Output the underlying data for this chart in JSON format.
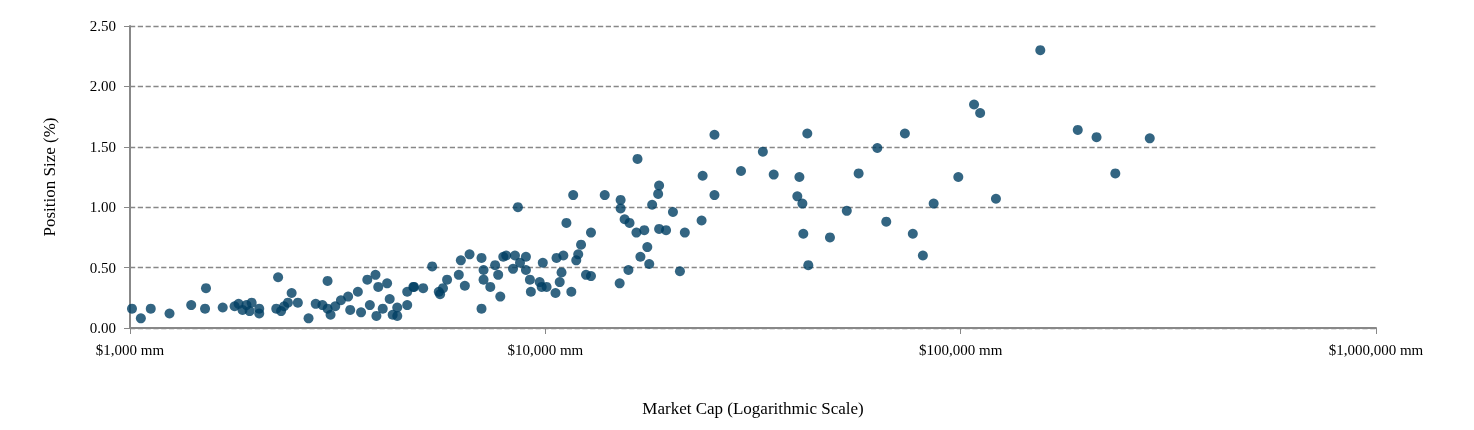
{
  "chart_data": {
    "type": "scatter",
    "xlabel": "Market Cap (Logarithmic Scale)",
    "ylabel": "Position Size (%)",
    "log": "x",
    "xlim": [
      1000,
      1000000
    ],
    "xticks": [
      {
        "value": 1000,
        "label": "$1,000 mm"
      },
      {
        "value": 10000,
        "label": "$10,000 mm"
      },
      {
        "value": 100000,
        "label": "$100,000 mm"
      },
      {
        "value": 1000000,
        "label": "$1,000,000 mm"
      }
    ],
    "ylim": [
      0,
      2.5
    ],
    "yticks": [
      {
        "value": 0,
        "label": "0.00"
      },
      {
        "value": 0.5,
        "label": "0.50"
      },
      {
        "value": 1,
        "label": "1.00"
      },
      {
        "value": 1.5,
        "label": "1.50"
      },
      {
        "value": 2,
        "label": "2.00"
      },
      {
        "value": 2.5,
        "label": "2.50"
      }
    ],
    "grid": "y",
    "marker": "circle",
    "series": [
      {
        "color": "#003f63",
        "x": [
          1011,
          1062,
          1122,
          1245,
          1404,
          1516,
          1524,
          1672,
          1786,
          1826,
          1866,
          1907,
          1941,
          1963,
          2047,
          2047,
          2273,
          2250,
          2311,
          2350,
          2400,
          2450,
          2536,
          2691,
          2800,
          2906,
          2990,
          2990,
          3040,
          3120,
          3220,
          3351,
          3537,
          3727,
          3900,
          3960,
          4160,
          4400,
          4650,
          4400,
          4650,
          4830,
          5080,
          5540,
          3390,
          3600,
          3780,
          3920,
          4060,
          4220,
          4290,
          5340,
          4810,
          5580,
          5670,
          5800,
          6190,
          6400,
          6260,
          6570,
          7020,
          7100,
          7100,
          7020,
          7370,
          7570,
          7700,
          7790,
          7920,
          8050,
          8360,
          8450,
          8590,
          8690,
          8980,
          8980,
          9180,
          9230,
          9860,
          9690,
          9800,
          10070,
          10580,
          10640,
          11050,
          10940,
          10830,
          11550,
          11670,
          11240,
          11870,
          12000,
          12190,
          12530,
          12880,
          12880,
          13900,
          15100,
          15180,
          15180,
          15520,
          15950,
          15850,
          16570,
          17310,
          16940,
          17600,
          17790,
          18080,
          18790,
          18690,
          18790,
          19530,
          20290,
          21090,
          21670,
          16670,
          25540,
          23920,
          25540,
          23780,
          29590,
          33400,
          35470,
          42730,
          40900,
          40430,
          41580,
          41800,
          42970,
          48450,
          53190,
          56800,
          63000,
          66200,
          73400,
          76700,
          81100,
          86100,
          98700,
          107700,
          111400,
          121600,
          155500,
          191400,
          212400,
          285300,
          235700
        ],
        "values": [
          0.16,
          0.08,
          0.16,
          0.12,
          0.19,
          0.16,
          0.33,
          0.17,
          0.18,
          0.2,
          0.15,
          0.19,
          0.14,
          0.21,
          0.16,
          0.12,
          0.42,
          0.16,
          0.14,
          0.18,
          0.21,
          0.29,
          0.21,
          0.08,
          0.2,
          0.19,
          0.16,
          0.39,
          0.11,
          0.18,
          0.23,
          0.26,
          0.3,
          0.4,
          0.44,
          0.34,
          0.37,
          0.17,
          0.19,
          0.1,
          0.3,
          0.34,
          0.33,
          0.3,
          0.15,
          0.13,
          0.19,
          0.1,
          0.16,
          0.24,
          0.11,
          0.51,
          0.34,
          0.28,
          0.33,
          0.4,
          0.44,
          0.35,
          0.56,
          0.61,
          0.58,
          0.48,
          0.4,
          0.16,
          0.34,
          0.52,
          0.44,
          0.26,
          0.59,
          0.6,
          0.49,
          0.6,
          1.0,
          0.54,
          0.59,
          0.48,
          0.4,
          0.3,
          0.54,
          0.38,
          0.34,
          0.34,
          0.29,
          0.58,
          0.6,
          0.46,
          0.38,
          0.3,
          1.1,
          0.87,
          0.56,
          0.61,
          0.69,
          0.44,
          0.79,
          0.43,
          1.1,
          0.37,
          1.06,
          0.99,
          0.9,
          0.87,
          0.48,
          0.79,
          0.81,
          0.59,
          0.67,
          0.53,
          1.02,
          1.18,
          1.11,
          0.82,
          0.81,
          0.96,
          0.47,
          0.79,
          1.4,
          1.6,
          1.26,
          1.1,
          0.89,
          1.3,
          1.46,
          1.27,
          1.61,
          1.25,
          1.09,
          1.03,
          0.78,
          0.52,
          0.75,
          0.97,
          1.28,
          1.49,
          0.88,
          1.61,
          0.78,
          0.6,
          1.03,
          1.25,
          1.85,
          1.78,
          1.07,
          2.3,
          1.64,
          1.58,
          1.57,
          1.28
        ]
      }
    ]
  }
}
